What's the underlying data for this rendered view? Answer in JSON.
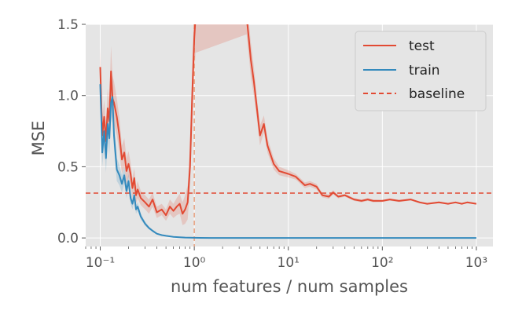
{
  "chart_data": {
    "type": "line",
    "xlabel": "num features / num samples",
    "ylabel": "MSE",
    "xscale": "log",
    "xlim": [
      0.07,
      1500
    ],
    "ylim": [
      -0.06,
      1.5
    ],
    "grid": true,
    "background_color": "#e5e5e5",
    "legend_position": "top-right",
    "x_ticks": [
      {
        "value": 0.1,
        "label": "10⁻¹"
      },
      {
        "value": 1,
        "label": "10⁰"
      },
      {
        "value": 10,
        "label": "10¹"
      },
      {
        "value": 100,
        "label": "10²"
      },
      {
        "value": 1000,
        "label": "10³"
      }
    ],
    "y_ticks": [
      {
        "value": 0.0,
        "label": "0.0"
      },
      {
        "value": 0.5,
        "label": "0.5"
      },
      {
        "value": 1.0,
        "label": "1.0"
      },
      {
        "value": 1.5,
        "label": "1.5"
      }
    ],
    "vertical_reference": {
      "x": 1,
      "color": "#e8a07e",
      "style": "dashed"
    },
    "series": [
      {
        "name": "test",
        "color": "#e24a33",
        "band_color": "#e24a33",
        "x": [
          0.1,
          0.105,
          0.11,
          0.115,
          0.12,
          0.125,
          0.13,
          0.135,
          0.14,
          0.15,
          0.16,
          0.17,
          0.18,
          0.19,
          0.2,
          0.21,
          0.22,
          0.23,
          0.24,
          0.25,
          0.27,
          0.3,
          0.33,
          0.36,
          0.4,
          0.45,
          0.5,
          0.55,
          0.6,
          0.65,
          0.7,
          0.75,
          0.8,
          0.85,
          0.9,
          0.95,
          1.0,
          1.03,
          3.6,
          3.8,
          4.0,
          4.3,
          4.6,
          5.0,
          5.5,
          6.0,
          7.0,
          8.0,
          10,
          12,
          15,
          17,
          20,
          23,
          27,
          30,
          34,
          40,
          50,
          60,
          70,
          80,
          100,
          120,
          150,
          200,
          250,
          300,
          400,
          500,
          600,
          700,
          800,
          1000
        ],
        "y": [
          1.2,
          0.72,
          0.85,
          0.68,
          0.91,
          0.82,
          1.17,
          0.98,
          0.95,
          0.85,
          0.72,
          0.55,
          0.6,
          0.47,
          0.52,
          0.45,
          0.35,
          0.42,
          0.3,
          0.34,
          0.28,
          0.25,
          0.22,
          0.27,
          0.18,
          0.2,
          0.16,
          0.22,
          0.19,
          0.22,
          0.24,
          0.17,
          0.2,
          0.25,
          0.5,
          1.0,
          1.4,
          1.55,
          1.55,
          1.4,
          1.25,
          1.1,
          0.93,
          0.72,
          0.8,
          0.65,
          0.52,
          0.47,
          0.45,
          0.43,
          0.37,
          0.38,
          0.36,
          0.3,
          0.29,
          0.32,
          0.29,
          0.3,
          0.27,
          0.26,
          0.27,
          0.26,
          0.26,
          0.27,
          0.26,
          0.27,
          0.25,
          0.24,
          0.25,
          0.24,
          0.25,
          0.24,
          0.25,
          0.24
        ],
        "band": [
          0.14,
          0.12,
          0.12,
          0.12,
          0.14,
          0.13,
          0.18,
          0.16,
          0.15,
          0.13,
          0.12,
          0.1,
          0.1,
          0.09,
          0.09,
          0.08,
          0.07,
          0.07,
          0.06,
          0.06,
          0.05,
          0.05,
          0.05,
          0.05,
          0.04,
          0.04,
          0.04,
          0.05,
          0.05,
          0.06,
          0.07,
          0.08,
          0.1,
          0.12,
          0.15,
          0.2,
          0.25,
          0.25,
          0.12,
          0.12,
          0.12,
          0.1,
          0.08,
          0.07,
          0.06,
          0.05,
          0.04,
          0.03,
          0.025,
          0.02,
          0.02,
          0.02,
          0.02,
          0.015,
          0.015,
          0.015,
          0.012,
          0.01,
          0.01,
          0.01,
          0.01,
          0.01,
          0.008,
          0.008,
          0.008,
          0.007,
          0.007,
          0.006,
          0.006,
          0.006,
          0.005,
          0.005,
          0.005,
          0.005
        ]
      },
      {
        "name": "train",
        "color": "#348abd",
        "band_color": "#348abd",
        "x": [
          0.1,
          0.105,
          0.11,
          0.115,
          0.12,
          0.125,
          0.13,
          0.135,
          0.14,
          0.15,
          0.16,
          0.17,
          0.18,
          0.19,
          0.2,
          0.21,
          0.22,
          0.23,
          0.24,
          0.25,
          0.27,
          0.3,
          0.33,
          0.36,
          0.4,
          0.45,
          0.5,
          0.6,
          0.7,
          0.8,
          1.0,
          1.5,
          2,
          5,
          10,
          100,
          1000
        ],
        "y": [
          1.08,
          0.6,
          0.75,
          0.56,
          0.8,
          0.7,
          0.95,
          0.99,
          0.72,
          0.48,
          0.44,
          0.38,
          0.44,
          0.33,
          0.4,
          0.28,
          0.24,
          0.3,
          0.2,
          0.22,
          0.15,
          0.1,
          0.07,
          0.05,
          0.03,
          0.02,
          0.015,
          0.008,
          0.005,
          0.003,
          0.001,
          0.0,
          0.0,
          0.0,
          0.0,
          0.0,
          0.0
        ],
        "band": [
          0.12,
          0.1,
          0.1,
          0.1,
          0.12,
          0.11,
          0.14,
          0.13,
          0.1,
          0.08,
          0.07,
          0.06,
          0.06,
          0.05,
          0.05,
          0.04,
          0.04,
          0.04,
          0.03,
          0.03,
          0.02,
          0.015,
          0.01,
          0.008,
          0.005,
          0.004,
          0.003,
          0.002,
          0.001,
          0.001,
          0.0,
          0.0,
          0.0,
          0.0,
          0.0,
          0.0,
          0.0
        ]
      }
    ],
    "baseline": {
      "name": "baseline",
      "y": 0.315,
      "color": "#e24a33",
      "style": "dashed"
    }
  }
}
